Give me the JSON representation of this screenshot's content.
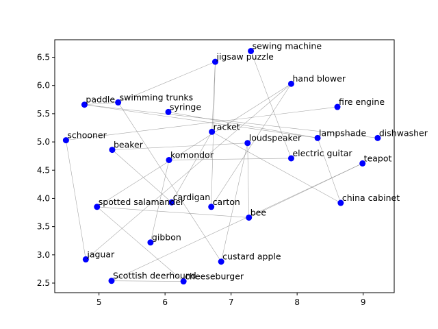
{
  "chart_data": {
    "type": "scatter",
    "title": "",
    "xlabel": "",
    "ylabel": "",
    "xlim": [
      4.33,
      9.47
    ],
    "ylim": [
      2.33,
      6.81
    ],
    "xticks": [
      5,
      6,
      7,
      8,
      9
    ],
    "yticks": [
      2.5,
      3.0,
      3.5,
      4.0,
      4.5,
      5.0,
      5.5,
      6.0,
      6.5
    ],
    "ytick_labels": [
      "2.5",
      "3.0",
      "3.5",
      "4.0",
      "4.5",
      "5.0",
      "5.5",
      "6.0",
      "6.5"
    ],
    "grid": false,
    "point_color": "#0000ff",
    "edge_color": "#808080",
    "points": [
      {
        "label": "sewing machine",
        "x": 7.3,
        "y": 6.61
      },
      {
        "label": "jigsaw puzzle",
        "x": 6.76,
        "y": 6.42
      },
      {
        "label": "hand blower",
        "x": 7.91,
        "y": 6.03
      },
      {
        "label": "swimming trunks",
        "x": 5.29,
        "y": 5.7
      },
      {
        "label": "paddle",
        "x": 4.78,
        "y": 5.66
      },
      {
        "label": "fire engine",
        "x": 8.61,
        "y": 5.62
      },
      {
        "label": "syringe",
        "x": 6.05,
        "y": 5.53
      },
      {
        "label": "racket",
        "x": 6.71,
        "y": 5.18
      },
      {
        "label": "lampshade",
        "x": 8.31,
        "y": 5.07
      },
      {
        "label": "dishwasher",
        "x": 9.22,
        "y": 5.07
      },
      {
        "label": "schooner",
        "x": 4.5,
        "y": 5.03
      },
      {
        "label": "loudspeaker",
        "x": 7.25,
        "y": 4.98
      },
      {
        "label": "beaker",
        "x": 5.2,
        "y": 4.86
      },
      {
        "label": "electric guitar",
        "x": 7.91,
        "y": 4.71
      },
      {
        "label": "komondor",
        "x": 6.06,
        "y": 4.68
      },
      {
        "label": "teapot",
        "x": 8.99,
        "y": 4.62
      },
      {
        "label": "china cabinet",
        "x": 8.66,
        "y": 3.92
      },
      {
        "label": "cardigan",
        "x": 6.1,
        "y": 3.93
      },
      {
        "label": "spotted salamander",
        "x": 4.97,
        "y": 3.85
      },
      {
        "label": "carton",
        "x": 6.7,
        "y": 3.85
      },
      {
        "label": "bee",
        "x": 7.27,
        "y": 3.66
      },
      {
        "label": "gibbon",
        "x": 5.78,
        "y": 3.22
      },
      {
        "label": "jaguar",
        "x": 4.8,
        "y": 2.92
      },
      {
        "label": "custard apple",
        "x": 6.85,
        "y": 2.88
      },
      {
        "label": "Scottish deerhound",
        "x": 5.19,
        "y": 2.54
      },
      {
        "label": "cheeseburger",
        "x": 6.28,
        "y": 2.53
      }
    ],
    "edges": [
      [
        "sewing machine",
        "electric guitar"
      ],
      [
        "jigsaw puzzle",
        "swimming trunks"
      ],
      [
        "jigsaw puzzle",
        "racket"
      ],
      [
        "jigsaw puzzle",
        "carton"
      ],
      [
        "hand blower",
        "carton"
      ],
      [
        "hand blower",
        "spotted salamander"
      ],
      [
        "hand blower",
        "jaguar"
      ],
      [
        "swimming trunks",
        "custard apple"
      ],
      [
        "paddle",
        "swimming trunks"
      ],
      [
        "paddle",
        "lampshade"
      ],
      [
        "paddle",
        "dishwasher"
      ],
      [
        "syringe",
        "lampshade"
      ],
      [
        "schooner",
        "fire engine"
      ],
      [
        "schooner",
        "jaguar"
      ],
      [
        "lampshade",
        "china cabinet"
      ],
      [
        "racket",
        "china cabinet"
      ],
      [
        "racket",
        "cardigan"
      ],
      [
        "beaker",
        "loudspeaker"
      ],
      [
        "beaker",
        "cardigan"
      ],
      [
        "loudspeaker",
        "bee"
      ],
      [
        "loudspeaker",
        "custard apple"
      ],
      [
        "komondor",
        "electric guitar"
      ],
      [
        "komondor",
        "gibbon"
      ],
      [
        "teapot",
        "bee"
      ],
      [
        "teapot",
        "Scottish deerhound"
      ],
      [
        "spotted salamander",
        "bee"
      ],
      [
        "spotted salamander",
        "cheeseburger"
      ],
      [
        "Scottish deerhound",
        "cheeseburger"
      ]
    ]
  }
}
